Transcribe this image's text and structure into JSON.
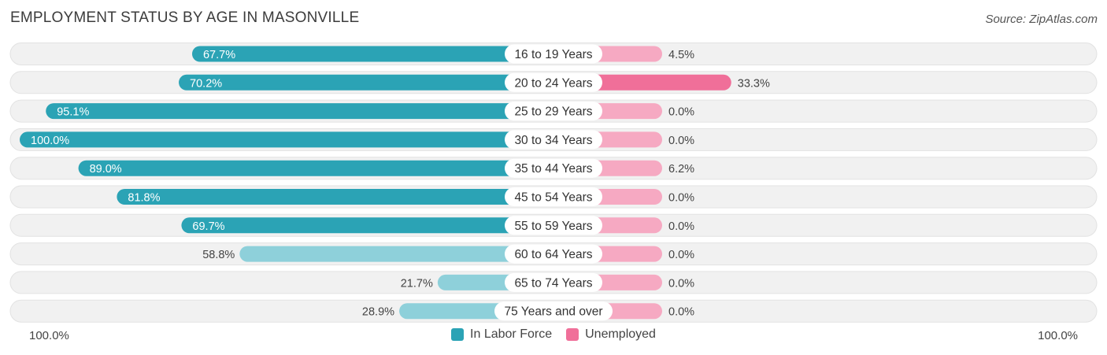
{
  "chart_data": {
    "type": "bar",
    "title": "EMPLOYMENT STATUS BY AGE IN MASONVILLE",
    "source": "Source: ZipAtlas.com",
    "categories": [
      "16 to 19 Years",
      "20 to 24 Years",
      "25 to 29 Years",
      "30 to 34 Years",
      "35 to 44 Years",
      "45 to 54 Years",
      "55 to 59 Years",
      "60 to 64 Years",
      "65 to 74 Years",
      "75 Years and over"
    ],
    "series": [
      {
        "name": "In Labor Force",
        "values": [
          67.7,
          70.2,
          95.1,
          100.0,
          89.0,
          81.8,
          69.7,
          58.8,
          21.7,
          28.9
        ],
        "labels": [
          "67.7%",
          "70.2%",
          "95.1%",
          "100.0%",
          "89.0%",
          "81.8%",
          "69.7%",
          "58.8%",
          "21.7%",
          "28.9%"
        ]
      },
      {
        "name": "Unemployed",
        "values": [
          4.5,
          33.3,
          0.0,
          0.0,
          6.2,
          0.0,
          0.0,
          0.0,
          0.0,
          0.0
        ],
        "labels": [
          "4.5%",
          "33.3%",
          "0.0%",
          "0.0%",
          "6.2%",
          "0.0%",
          "0.0%",
          "0.0%",
          "0.0%",
          "0.0%"
        ]
      }
    ],
    "xlim": [
      -100,
      100
    ],
    "axis_left_label": "100.0%",
    "axis_right_label": "100.0%",
    "colors": {
      "labor_strong": "#2ba3b5",
      "labor_light": "#8ed0da",
      "unemployed_strong": "#f06f99",
      "unemployed_light": "#f6a9c2",
      "track": "#f1f1f1",
      "track_border": "#e2e2e2"
    },
    "legend_position": "bottom-center"
  }
}
